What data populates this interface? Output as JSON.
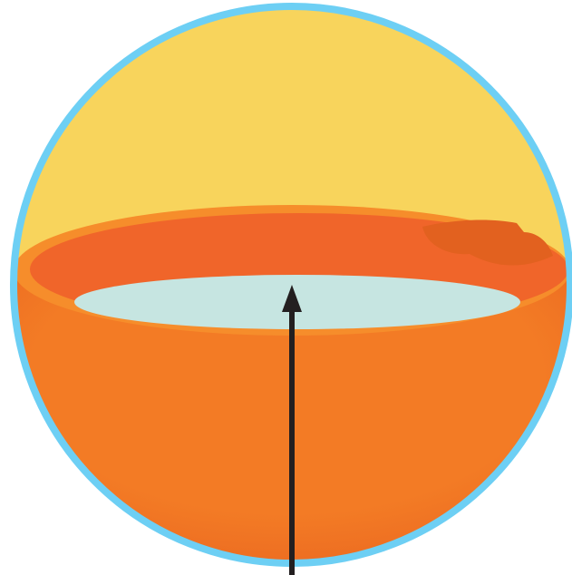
{
  "diagram": {
    "colors": {
      "outline": "#6dcff4",
      "upper_hemisphere": "#f8d45c",
      "bowl_outer": "#f37b25",
      "bowl_edge": "#e8621f",
      "rim": "#f68d2b",
      "rim_inner": "#f0652a",
      "rim_shadow": "#e2611f",
      "liquid_surface": "#c6e5e1",
      "arrow": "#231f20"
    },
    "parts": [
      "sphere-outline",
      "upper-hemisphere",
      "lower-bowl",
      "bowl-rim",
      "liquid-surface",
      "upward-arrow"
    ]
  }
}
